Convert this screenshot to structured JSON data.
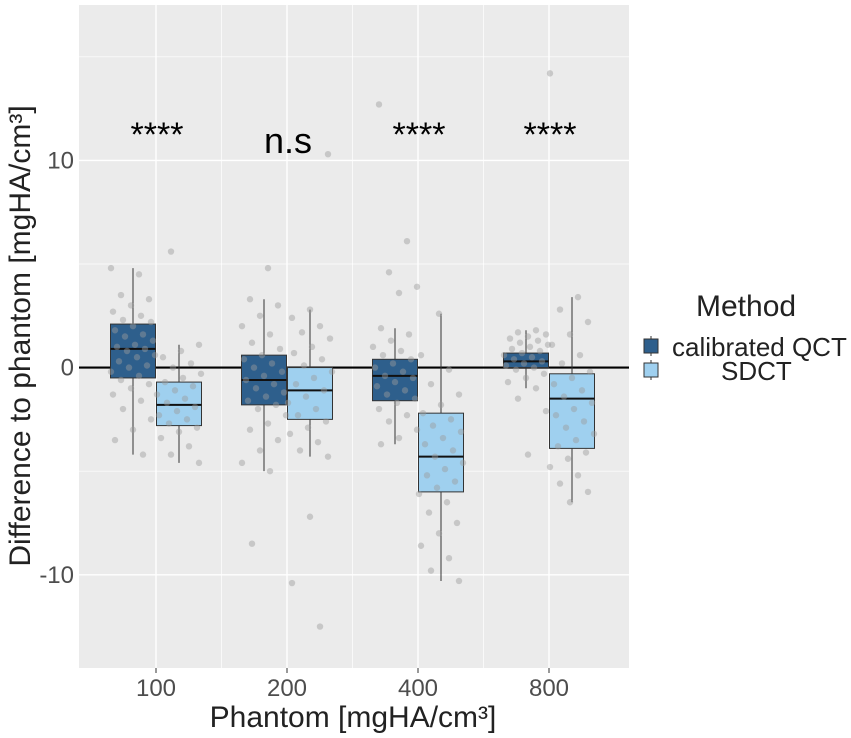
{
  "chart_data": {
    "type": "boxplot",
    "xlabel": "Phantom [mgHA/cm³]",
    "ylabel": "Difference to phantom [mgHA/cm³]",
    "categories": [
      "100",
      "200",
      "400",
      "800"
    ],
    "ylim": [
      -14.5,
      17.5
    ],
    "y_ticks": [
      -10,
      0,
      10
    ],
    "y_tick_labels": [
      "-10",
      "0",
      "10"
    ],
    "reference_line": 0,
    "grid": true,
    "legend": {
      "title": "Method",
      "position": "right",
      "entries": [
        "calibrated QCT",
        "SDCT"
      ]
    },
    "significance": [
      "****",
      "n.s",
      "****",
      "****"
    ],
    "colors": {
      "calibrated QCT": "#2e5f8c",
      "SDCT": "#9fd0ef",
      "panel": "#ebebeb",
      "grid": "#ffffff",
      "points": "#a6a6a6"
    },
    "series": [
      {
        "name": "calibrated QCT",
        "boxes": [
          {
            "q1": -0.5,
            "median": 0.9,
            "q3": 2.1,
            "whisker_low": -4.2,
            "whisker_high": 4.8,
            "points": [
              4.8,
              4.5,
              3.5,
              3.3,
              3.0,
              2.7,
              2.5,
              2.3,
              2.2,
              2.0,
              1.8,
              1.6,
              1.5,
              1.3,
              1.1,
              1.0,
              0.9,
              0.8,
              0.6,
              0.5,
              0.3,
              0.1,
              0.0,
              -0.2,
              -0.4,
              -0.6,
              -0.8,
              -1.0,
              -1.3,
              -1.6,
              -2.0,
              -2.5,
              -3.0,
              -3.5,
              -4.2
            ]
          },
          {
            "q1": -1.8,
            "median": -0.6,
            "q3": 0.6,
            "whisker_low": -5.0,
            "whisker_high": 3.3,
            "points": [
              4.8,
              3.3,
              3.0,
              2.5,
              2.0,
              1.6,
              1.2,
              0.9,
              0.6,
              0.4,
              0.2,
              0.0,
              -0.2,
              -0.4,
              -0.6,
              -0.8,
              -1.0,
              -1.2,
              -1.4,
              -1.6,
              -1.8,
              -2.0,
              -2.3,
              -2.7,
              -3.0,
              -3.5,
              -4.0,
              -4.6,
              -5.0,
              -8.5
            ]
          },
          {
            "q1": -1.6,
            "median": -0.4,
            "q3": 0.4,
            "whisker_low": -3.7,
            "whisker_high": 1.9,
            "points": [
              12.7,
              6.1,
              4.6,
              3.9,
              3.6,
              1.9,
              1.6,
              1.3,
              1.0,
              0.8,
              0.6,
              0.4,
              0.2,
              0.0,
              -0.2,
              -0.4,
              -0.5,
              -0.7,
              -0.9,
              -1.1,
              -1.3,
              -1.5,
              -1.7,
              -2.0,
              -2.3,
              -2.6,
              -3.0,
              -3.4,
              -3.7
            ]
          },
          {
            "q1": 0.0,
            "median": 0.3,
            "q3": 0.7,
            "whisker_low": -1.0,
            "whisker_high": 1.8,
            "points": [
              1.8,
              1.7,
              1.6,
              1.5,
              1.4,
              1.3,
              1.2,
              1.1,
              1.0,
              0.9,
              0.8,
              0.7,
              0.6,
              0.5,
              0.4,
              0.3,
              0.2,
              0.1,
              0.0,
              -0.1,
              -0.3,
              -0.5,
              -0.7,
              -1.0,
              -1.5,
              -2.1,
              -4.2
            ]
          }
        ]
      },
      {
        "name": "SDCT",
        "boxes": [
          {
            "q1": -2.8,
            "median": -1.8,
            "q3": -0.7,
            "whisker_low": -4.6,
            "whisker_high": 1.1,
            "points": [
              5.6,
              1.1,
              0.8,
              0.5,
              0.2,
              0.0,
              -0.3,
              -0.5,
              -0.7,
              -0.9,
              -1.1,
              -1.3,
              -1.5,
              -1.7,
              -1.9,
              -2.1,
              -2.3,
              -2.5,
              -2.7,
              -2.9,
              -3.1,
              -3.4,
              -3.8,
              -4.2,
              -4.6
            ]
          },
          {
            "q1": -2.5,
            "median": -1.1,
            "q3": 0.0,
            "whisker_low": -4.3,
            "whisker_high": 2.8,
            "points": [
              10.3,
              2.8,
              2.4,
              2.0,
              1.7,
              1.4,
              1.0,
              0.7,
              0.4,
              0.1,
              -0.2,
              -0.5,
              -0.8,
              -1.1,
              -1.4,
              -1.7,
              -2.0,
              -2.3,
              -2.6,
              -2.9,
              -3.2,
              -3.6,
              -4.0,
              -4.3,
              -7.2,
              -10.4,
              -12.5
            ]
          },
          {
            "q1": -6.0,
            "median": -4.3,
            "q3": -2.2,
            "whisker_low": -10.3,
            "whisker_high": 2.6,
            "points": [
              2.6,
              0.6,
              -0.1,
              -0.8,
              -1.3,
              -1.8,
              -2.2,
              -2.5,
              -2.8,
              -3.1,
              -3.4,
              -3.7,
              -4.0,
              -4.3,
              -4.6,
              -4.9,
              -5.2,
              -5.5,
              -5.8,
              -6.1,
              -6.5,
              -7.0,
              -7.5,
              -8.0,
              -8.6,
              -9.2,
              -9.8,
              -10.3
            ]
          },
          {
            "q1": -3.9,
            "median": -1.5,
            "q3": -0.3,
            "whisker_low": -6.5,
            "whisker_high": 3.4,
            "points": [
              14.2,
              3.4,
              2.8,
              2.2,
              1.6,
              1.1,
              0.6,
              0.2,
              -0.2,
              -0.5,
              -0.8,
              -1.1,
              -1.4,
              -1.7,
              -2.0,
              -2.3,
              -2.6,
              -2.9,
              -3.2,
              -3.5,
              -3.8,
              -4.1,
              -4.4,
              -4.8,
              -5.2,
              -5.6,
              -6.0,
              -6.5
            ]
          }
        ]
      }
    ]
  }
}
